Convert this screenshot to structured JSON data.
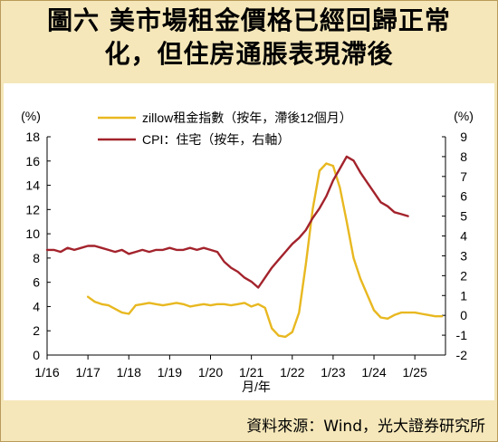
{
  "title": {
    "line1": "圖六 美市場租金價格已經回歸正常",
    "line2": "化，但住房通脹表現滯後"
  },
  "source": "資料來源：Wind，光大證券研究所",
  "colors": {
    "background": "#f5e7b9",
    "zillow": "#e8b820",
    "cpi": "#a3232c"
  },
  "chart_data": {
    "type": "line",
    "title": "",
    "xlabel": "月/年",
    "ylabel_left": "(%)",
    "ylabel_right": "(%)",
    "ylim_left": [
      0,
      18
    ],
    "ylim_right": [
      -2,
      9
    ],
    "yticks_left": [
      "0",
      "2",
      "4",
      "6",
      "8",
      "10",
      "12",
      "14",
      "16",
      "18"
    ],
    "yticks_right": [
      "-2",
      "-1",
      "0",
      "1",
      "2",
      "3",
      "4",
      "5",
      "6",
      "7",
      "8",
      "9"
    ],
    "xticks": [
      "1/16",
      "1/17",
      "1/18",
      "1/19",
      "1/20",
      "1/21",
      "1/22",
      "1/23",
      "1/24",
      "1/25"
    ],
    "x_start": "2016-01",
    "legend_position": "top-center",
    "grid": false,
    "series": [
      {
        "name": "zillow租金指數（按年，滯後12個月）",
        "axis": "left",
        "x": [
          "2017-01",
          "2017-03",
          "2017-05",
          "2017-07",
          "2017-09",
          "2017-11",
          "2018-01",
          "2018-03",
          "2018-05",
          "2018-07",
          "2018-09",
          "2018-11",
          "2019-01",
          "2019-03",
          "2019-05",
          "2019-07",
          "2019-09",
          "2019-11",
          "2020-01",
          "2020-03",
          "2020-05",
          "2020-07",
          "2020-09",
          "2020-11",
          "2021-01",
          "2021-03",
          "2021-05",
          "2021-07",
          "2021-09",
          "2021-11",
          "2022-01",
          "2022-03",
          "2022-05",
          "2022-07",
          "2022-09",
          "2022-11",
          "2023-01",
          "2023-03",
          "2023-05",
          "2023-07",
          "2023-09",
          "2023-11",
          "2024-01",
          "2024-03",
          "2024-05",
          "2024-07",
          "2024-09",
          "2024-11",
          "2025-01",
          "2025-03",
          "2025-05",
          "2025-07",
          "2025-09"
        ],
        "values": [
          4.8,
          4.4,
          4.2,
          4.1,
          3.8,
          3.5,
          3.4,
          4.1,
          4.2,
          4.3,
          4.2,
          4.1,
          4.2,
          4.3,
          4.2,
          4.0,
          4.1,
          4.2,
          4.1,
          4.2,
          4.2,
          4.1,
          4.2,
          4.3,
          4.0,
          4.2,
          3.9,
          2.2,
          1.6,
          1.5,
          1.9,
          3.5,
          7.5,
          12.0,
          15.2,
          15.8,
          15.6,
          13.8,
          11.0,
          8.0,
          6.3,
          5.0,
          3.7,
          3.1,
          3.0,
          3.3,
          3.5,
          3.5,
          3.5,
          3.4,
          3.3,
          3.2,
          3.2
        ]
      },
      {
        "name": "CPI：住宅（按年，右軸）",
        "axis": "right",
        "x": [
          "2016-01",
          "2016-03",
          "2016-05",
          "2016-07",
          "2016-09",
          "2016-11",
          "2017-01",
          "2017-03",
          "2017-05",
          "2017-07",
          "2017-09",
          "2017-11",
          "2018-01",
          "2018-03",
          "2018-05",
          "2018-07",
          "2018-09",
          "2018-11",
          "2019-01",
          "2019-03",
          "2019-05",
          "2019-07",
          "2019-09",
          "2019-11",
          "2020-01",
          "2020-03",
          "2020-05",
          "2020-07",
          "2020-09",
          "2020-11",
          "2021-01",
          "2021-03",
          "2021-05",
          "2021-07",
          "2021-09",
          "2021-11",
          "2022-01",
          "2022-03",
          "2022-05",
          "2022-07",
          "2022-09",
          "2022-11",
          "2023-01",
          "2023-03",
          "2023-05",
          "2023-07",
          "2023-09",
          "2023-11",
          "2024-01",
          "2024-03",
          "2024-05",
          "2024-07",
          "2024-09",
          "2024-11"
        ],
        "values": [
          3.3,
          3.3,
          3.2,
          3.4,
          3.3,
          3.4,
          3.5,
          3.5,
          3.4,
          3.3,
          3.2,
          3.3,
          3.1,
          3.2,
          3.3,
          3.2,
          3.3,
          3.3,
          3.4,
          3.3,
          3.3,
          3.4,
          3.3,
          3.4,
          3.3,
          3.2,
          2.7,
          2.4,
          2.2,
          1.9,
          1.7,
          1.4,
          1.9,
          2.4,
          2.8,
          3.2,
          3.6,
          3.9,
          4.3,
          4.9,
          5.4,
          6.0,
          6.8,
          7.4,
          8.0,
          7.8,
          7.2,
          6.7,
          6.2,
          5.7,
          5.5,
          5.2,
          5.1,
          5.0
        ]
      }
    ]
  }
}
